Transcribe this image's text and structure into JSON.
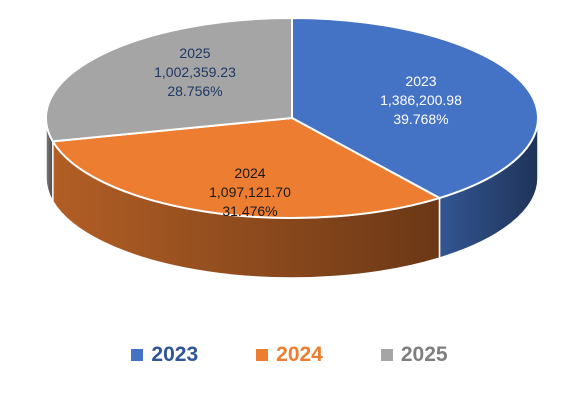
{
  "chart_data": {
    "type": "pie",
    "title": "",
    "categories": [
      "2023",
      "2024",
      "2025"
    ],
    "values": [
      1386200.98,
      1097121.7,
      1002359.23
    ],
    "value_labels": [
      "1,386,200.98",
      "1,097,121.70",
      "1,002,359.23"
    ],
    "percent_labels": [
      "39.768%",
      "31.476%",
      "28.756%"
    ],
    "percents": [
      39.768,
      31.476,
      28.756
    ],
    "colors": [
      "#4472C4",
      "#ED7D31",
      "#A5A5A5"
    ],
    "label_colors": [
      "#ffffff",
      "#1a1a1a",
      "#1f3864"
    ],
    "legend_text_colors": [
      "#2F5597",
      "#ED7D31",
      "#7F7F7F"
    ],
    "style": "3d",
    "legend": {
      "position": "bottom"
    }
  }
}
